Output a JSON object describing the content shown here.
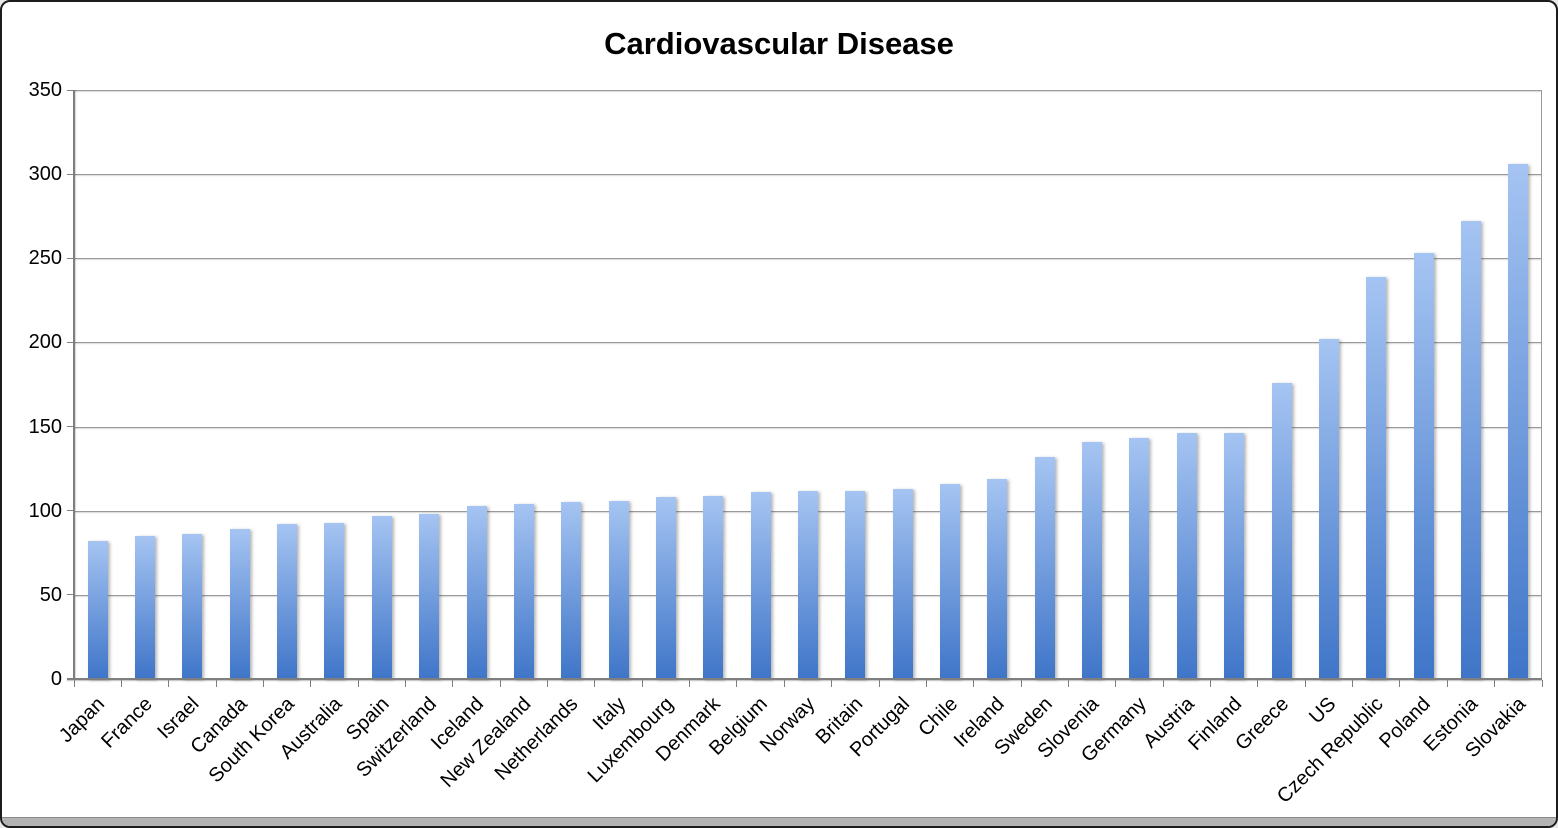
{
  "window": {
    "background": "#ffffff",
    "border_color": "#1c1c1c",
    "bottom_strip_color": "#b3b3b3"
  },
  "chart_data": {
    "type": "bar",
    "title": "Cardiovascular Disease",
    "categories": [
      "Japan",
      "France",
      "Israel",
      "Canada",
      "South Korea",
      "Australia",
      "Spain",
      "Switzerland",
      "Iceland",
      "New Zealand",
      "Netherlands",
      "Italy",
      "Luxembourg",
      "Denmark",
      "Belgium",
      "Norway",
      "Britain",
      "Portugal",
      "Chile",
      "Ireland",
      "Sweden",
      "Slovenia",
      "Germany",
      "Austria",
      "Finland",
      "Greece",
      "US",
      "Czech Republic",
      "Poland",
      "Estonia",
      "Slovakia"
    ],
    "values": [
      82,
      85,
      86,
      89,
      92,
      93,
      97,
      98,
      103,
      104,
      105,
      106,
      108,
      109,
      111,
      112,
      112,
      113,
      116,
      119,
      132,
      141,
      143,
      146,
      146,
      176,
      202,
      239,
      253,
      272,
      306
    ],
    "xlabel": "",
    "ylabel": "",
    "ylim": [
      0,
      350
    ],
    "yticks": [
      350,
      300,
      250,
      200,
      150,
      100,
      50,
      0
    ],
    "grid": true,
    "legend": false,
    "legend_position": "none",
    "xlabel_rotation_deg": 45,
    "colors": {
      "bar_gradient_top": "#a5c4f2",
      "bar_gradient_bottom": "#3f75c8",
      "gridline": "#9a9a9a",
      "axis": "#7f7f7f",
      "tick": "#7f7f7f",
      "text": "#000000"
    }
  }
}
